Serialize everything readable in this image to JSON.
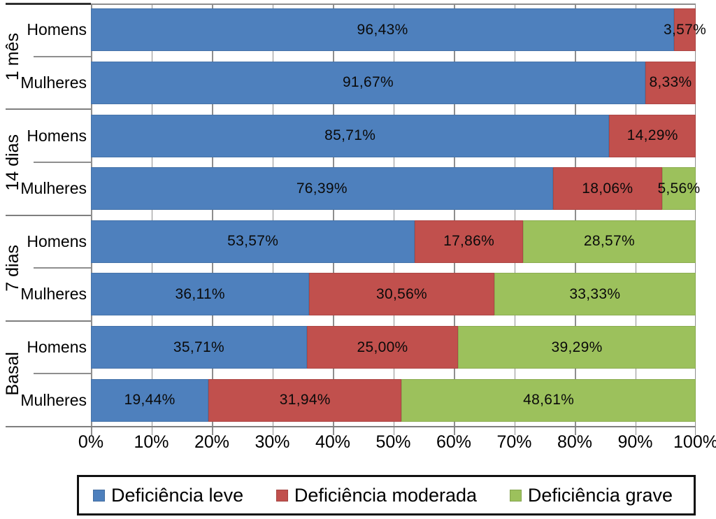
{
  "colors": {
    "leve": "#4E80BD",
    "moderada": "#C1504D",
    "grave": "#9CC15C",
    "grid": "#8E8E8E",
    "axis": "#7F7F7F"
  },
  "chart_data": {
    "type": "bar",
    "stacked": true,
    "orientation": "horizontal",
    "percent_axis": true,
    "xlim": [
      0,
      100
    ],
    "x_tick_labels": [
      "0%",
      "10%",
      "20%",
      "30%",
      "40%",
      "50%",
      "60%",
      "70%",
      "80%",
      "90%",
      "100%"
    ],
    "grid": true,
    "legend_position": "bottom",
    "series": [
      {
        "name": "Deficiência leve",
        "color": "#4E80BD"
      },
      {
        "name": "Deficiência moderada",
        "color": "#C1504D"
      },
      {
        "name": "Deficiência grave",
        "color": "#9CC15C"
      }
    ],
    "groups": [
      "1 mês",
      "14 dias",
      "7 dias",
      "Basal"
    ],
    "rows": [
      {
        "group": "1 mês",
        "label": "Homens",
        "values": [
          96.43,
          3.57,
          0
        ],
        "value_labels": [
          "96,43%",
          "3,57%",
          ""
        ]
      },
      {
        "group": "1 mês",
        "label": "Mulheres",
        "values": [
          91.67,
          8.33,
          0
        ],
        "value_labels": [
          "91,67%",
          "8,33%",
          ""
        ]
      },
      {
        "group": "14 dias",
        "label": "Homens",
        "values": [
          85.71,
          14.29,
          0
        ],
        "value_labels": [
          "85,71%",
          "14,29%",
          ""
        ]
      },
      {
        "group": "14 dias",
        "label": "Mulheres",
        "values": [
          76.39,
          18.06,
          5.56
        ],
        "value_labels": [
          "76,39%",
          "18,06%",
          "5,56%"
        ]
      },
      {
        "group": "7 dias",
        "label": "Homens",
        "values": [
          53.57,
          17.86,
          28.57
        ],
        "value_labels": [
          "53,57%",
          "17,86%",
          "28,57%"
        ]
      },
      {
        "group": "7 dias",
        "label": "Mulheres",
        "values": [
          36.11,
          30.56,
          33.33
        ],
        "value_labels": [
          "36,11%",
          "30,56%",
          "33,33%"
        ]
      },
      {
        "group": "Basal",
        "label": "Homens",
        "values": [
          35.71,
          25.0,
          39.29
        ],
        "value_labels": [
          "35,71%",
          "25,00%",
          "39,29%"
        ]
      },
      {
        "group": "Basal",
        "label": "Mulheres",
        "values": [
          19.44,
          31.94,
          48.61
        ],
        "value_labels": [
          "19,44%",
          "31,94%",
          "48,61%"
        ]
      }
    ]
  }
}
